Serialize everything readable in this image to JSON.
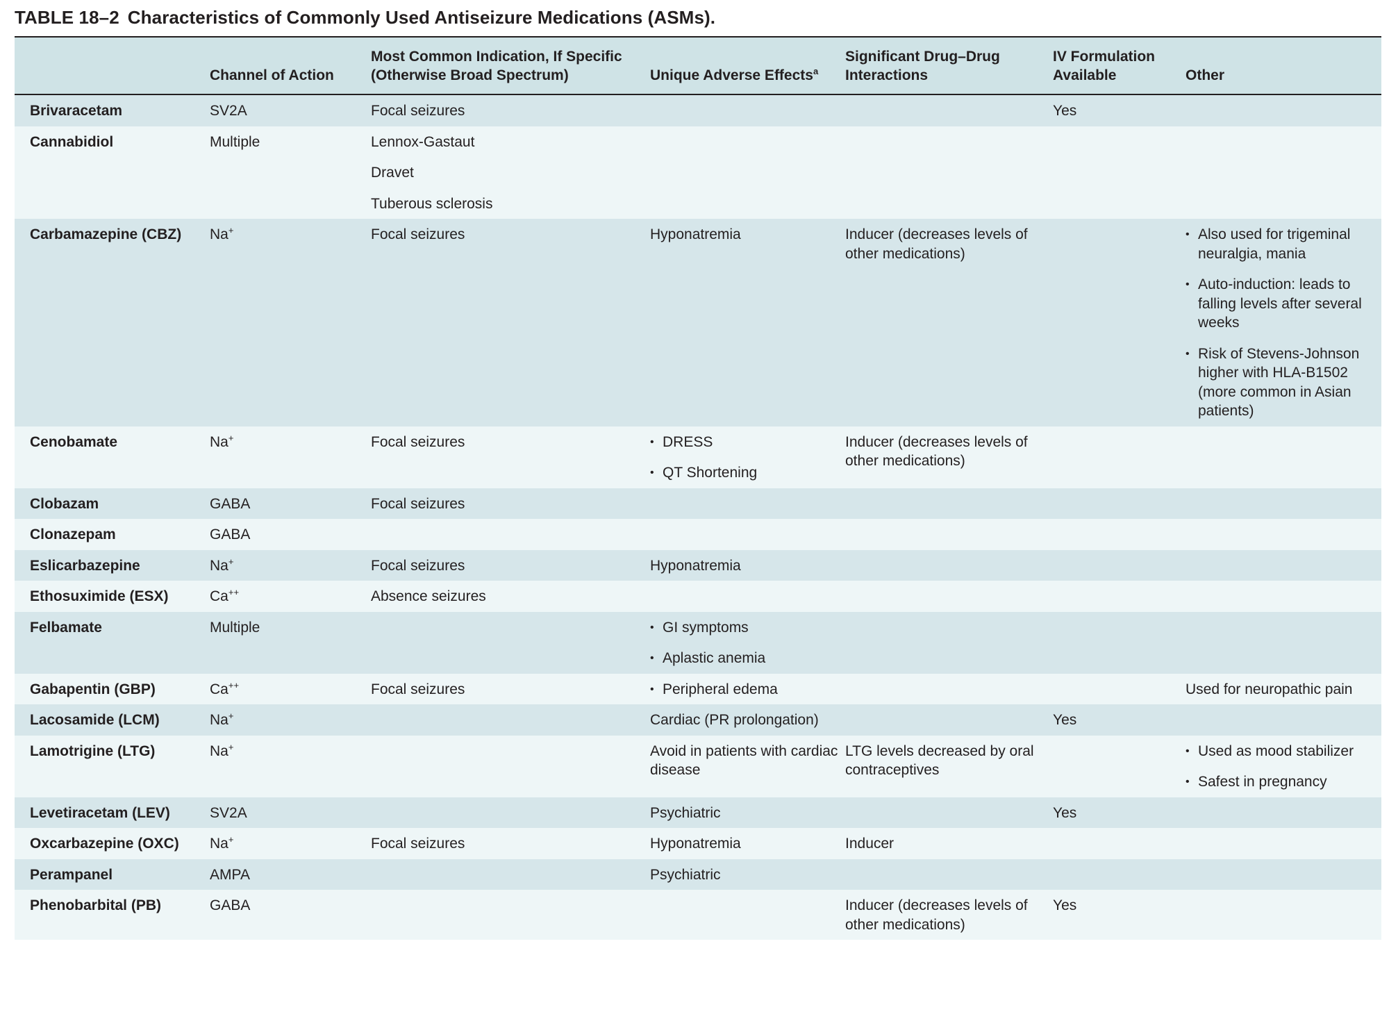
{
  "title": {
    "number": "TABLE 18–2",
    "text": "Characteristics of Commonly Used Antiseizure Medications (ASMs)."
  },
  "headers": {
    "drug": "",
    "channel": "Channel of Action",
    "indication_line1": "Most Common Indication, If Specific",
    "indication_line2": "(Otherwise Broad Spectrum)",
    "adverse": "Unique Adverse Effects",
    "adverse_sup": "a",
    "interactions_line1": "Significant Drug–Drug",
    "interactions_line2": "Interactions",
    "iv_line1": "IV Formulation",
    "iv_line2": "Available",
    "other": "Other"
  },
  "rows": [
    {
      "drug": "Brivaracetam",
      "channel": "SV2A",
      "indication": [
        "Focal seizures"
      ],
      "adverse": [],
      "interactions": "",
      "iv": "Yes",
      "other": []
    },
    {
      "drug": "Cannabidiol",
      "channel": "Multiple",
      "indication": [
        "Lennox-Gastaut",
        "Dravet",
        "Tuberous sclerosis"
      ],
      "adverse": [],
      "interactions": "",
      "iv": "",
      "other": []
    },
    {
      "drug": "Carbamazepine (CBZ)",
      "channel": "Na",
      "channel_sup": "+",
      "indication": [
        "Focal seizures"
      ],
      "adverse": [
        "Hyponatremia"
      ],
      "interactions": "Inducer (decreases levels of other medications)",
      "iv": "",
      "other_bullets": [
        "Also used for trigemi­nal neuralgia, mania",
        "Auto-induction: leads to falling levels after several weeks",
        "Risk of Stevens-John­son higher with HLA-B1502 (more common in Asian patients)"
      ]
    },
    {
      "drug": "Cenobamate",
      "channel": "Na",
      "channel_sup": "+",
      "indication": [
        "Focal seizures"
      ],
      "adverse_bullets": [
        "DRESS",
        "QT Shortening"
      ],
      "interactions": "Inducer (decreases levels of other medications)",
      "iv": "",
      "other": []
    },
    {
      "drug": "Clobazam",
      "channel": "GABA",
      "indication": [
        "Focal seizures"
      ],
      "adverse": [],
      "interactions": "",
      "iv": "",
      "other": []
    },
    {
      "drug": "Clonazepam",
      "channel": "GABA",
      "indication": [],
      "adverse": [],
      "interactions": "",
      "iv": "",
      "other": []
    },
    {
      "drug": "Eslicarbazepine",
      "channel": "Na",
      "channel_sup": "+",
      "indication": [
        "Focal seizures"
      ],
      "adverse": [
        "Hyponatremia"
      ],
      "interactions": "",
      "iv": "",
      "other": []
    },
    {
      "drug": "Ethosuximide (ESX)",
      "channel": "Ca",
      "channel_sup": "++",
      "indication": [
        "Absence seizures"
      ],
      "adverse": [],
      "interactions": "",
      "iv": "",
      "other": []
    },
    {
      "drug": "Felbamate",
      "channel": "Multiple",
      "indication": [],
      "adverse_bullets": [
        "GI symptoms",
        "Aplastic anemia"
      ],
      "interactions": "",
      "iv": "",
      "other": []
    },
    {
      "drug": "Gabapentin (GBP)",
      "channel": "Ca",
      "channel_sup": "++",
      "indication": [
        "Focal seizures"
      ],
      "adverse_bullets": [
        "Peripheral edema"
      ],
      "interactions": "",
      "iv": "",
      "other": [
        "Used for neuropathic pain"
      ]
    },
    {
      "drug": "Lacosamide (LCM)",
      "channel": "Na",
      "channel_sup": "+",
      "indication": [],
      "adverse": [
        "Cardiac (PR prolongation)"
      ],
      "interactions": "",
      "iv": "Yes",
      "other": []
    },
    {
      "drug": "Lamotrigine (LTG)",
      "channel": "Na",
      "channel_sup": "+",
      "indication": [],
      "adverse": [
        "Avoid in patients with cardiac disease"
      ],
      "interactions": "LTG levels decreased by oral contraceptives",
      "iv": "",
      "other_bullets": [
        "Used as mood stabilizer",
        "Safest in pregnancy"
      ]
    },
    {
      "drug": "Levetiracetam (LEV)",
      "channel": "SV2A",
      "indication": [],
      "adverse": [
        "Psychiatric"
      ],
      "interactions": "",
      "iv": "Yes",
      "other": []
    },
    {
      "drug": "Oxcarbazepine (OXC)",
      "channel": "Na",
      "channel_sup": "+",
      "indication": [
        "Focal seizures"
      ],
      "adverse": [
        "Hyponatremia"
      ],
      "interactions": "Inducer",
      "iv": "",
      "other": []
    },
    {
      "drug": "Perampanel",
      "channel": "AMPA",
      "indication": [],
      "adverse": [
        "Psychiatric"
      ],
      "interactions": "",
      "iv": "",
      "other": []
    },
    {
      "drug": "Phenobarbital (PB)",
      "channel": "GABA",
      "indication": [],
      "adverse": [],
      "interactions": "Inducer (decreases levels of other medications)",
      "iv": "Yes",
      "other": []
    }
  ],
  "colors": {
    "header_bg": "#cfe3e6",
    "row_dark": "#d6e6ea",
    "row_light": "#eef6f7",
    "text": "#231f20"
  }
}
